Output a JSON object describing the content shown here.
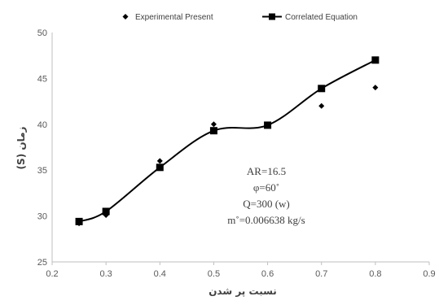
{
  "chart_data": {
    "type": "line",
    "xlabel": "نسبت پر شدن",
    "ylabel": "زمان (S)",
    "xlim": [
      0.2,
      0.9
    ],
    "ylim": [
      25,
      50
    ],
    "xticks": [
      "0.2",
      "0.3",
      "0.4",
      "0.5",
      "0.6",
      "0.7",
      "0.8",
      "0.9"
    ],
    "yticks": [
      "25",
      "30",
      "35",
      "40",
      "45",
      "50"
    ],
    "grid": false,
    "legend_position": "top",
    "series": [
      {
        "name": "Experimental Present",
        "kind": "scatter",
        "marker": "diamond",
        "x": [
          0.25,
          0.3,
          0.4,
          0.5,
          0.7,
          0.8
        ],
        "y": [
          29.2,
          30.1,
          36.0,
          40.0,
          42.0,
          44.0
        ]
      },
      {
        "name": "Correlated Equation",
        "kind": "line",
        "marker": "square",
        "x": [
          0.25,
          0.3,
          0.4,
          0.5,
          0.6,
          0.7,
          0.8
        ],
        "y": [
          29.4,
          30.5,
          35.3,
          39.3,
          39.9,
          43.9,
          47.0
        ]
      }
    ],
    "annotations": [
      "AR=16.5",
      "φ=60˚",
      "Q=300 (w)",
      "m˚=0.006638 kg/s"
    ],
    "colors": {
      "series": "#000000",
      "axis": "#bfbfbf",
      "text": "#595959"
    }
  }
}
